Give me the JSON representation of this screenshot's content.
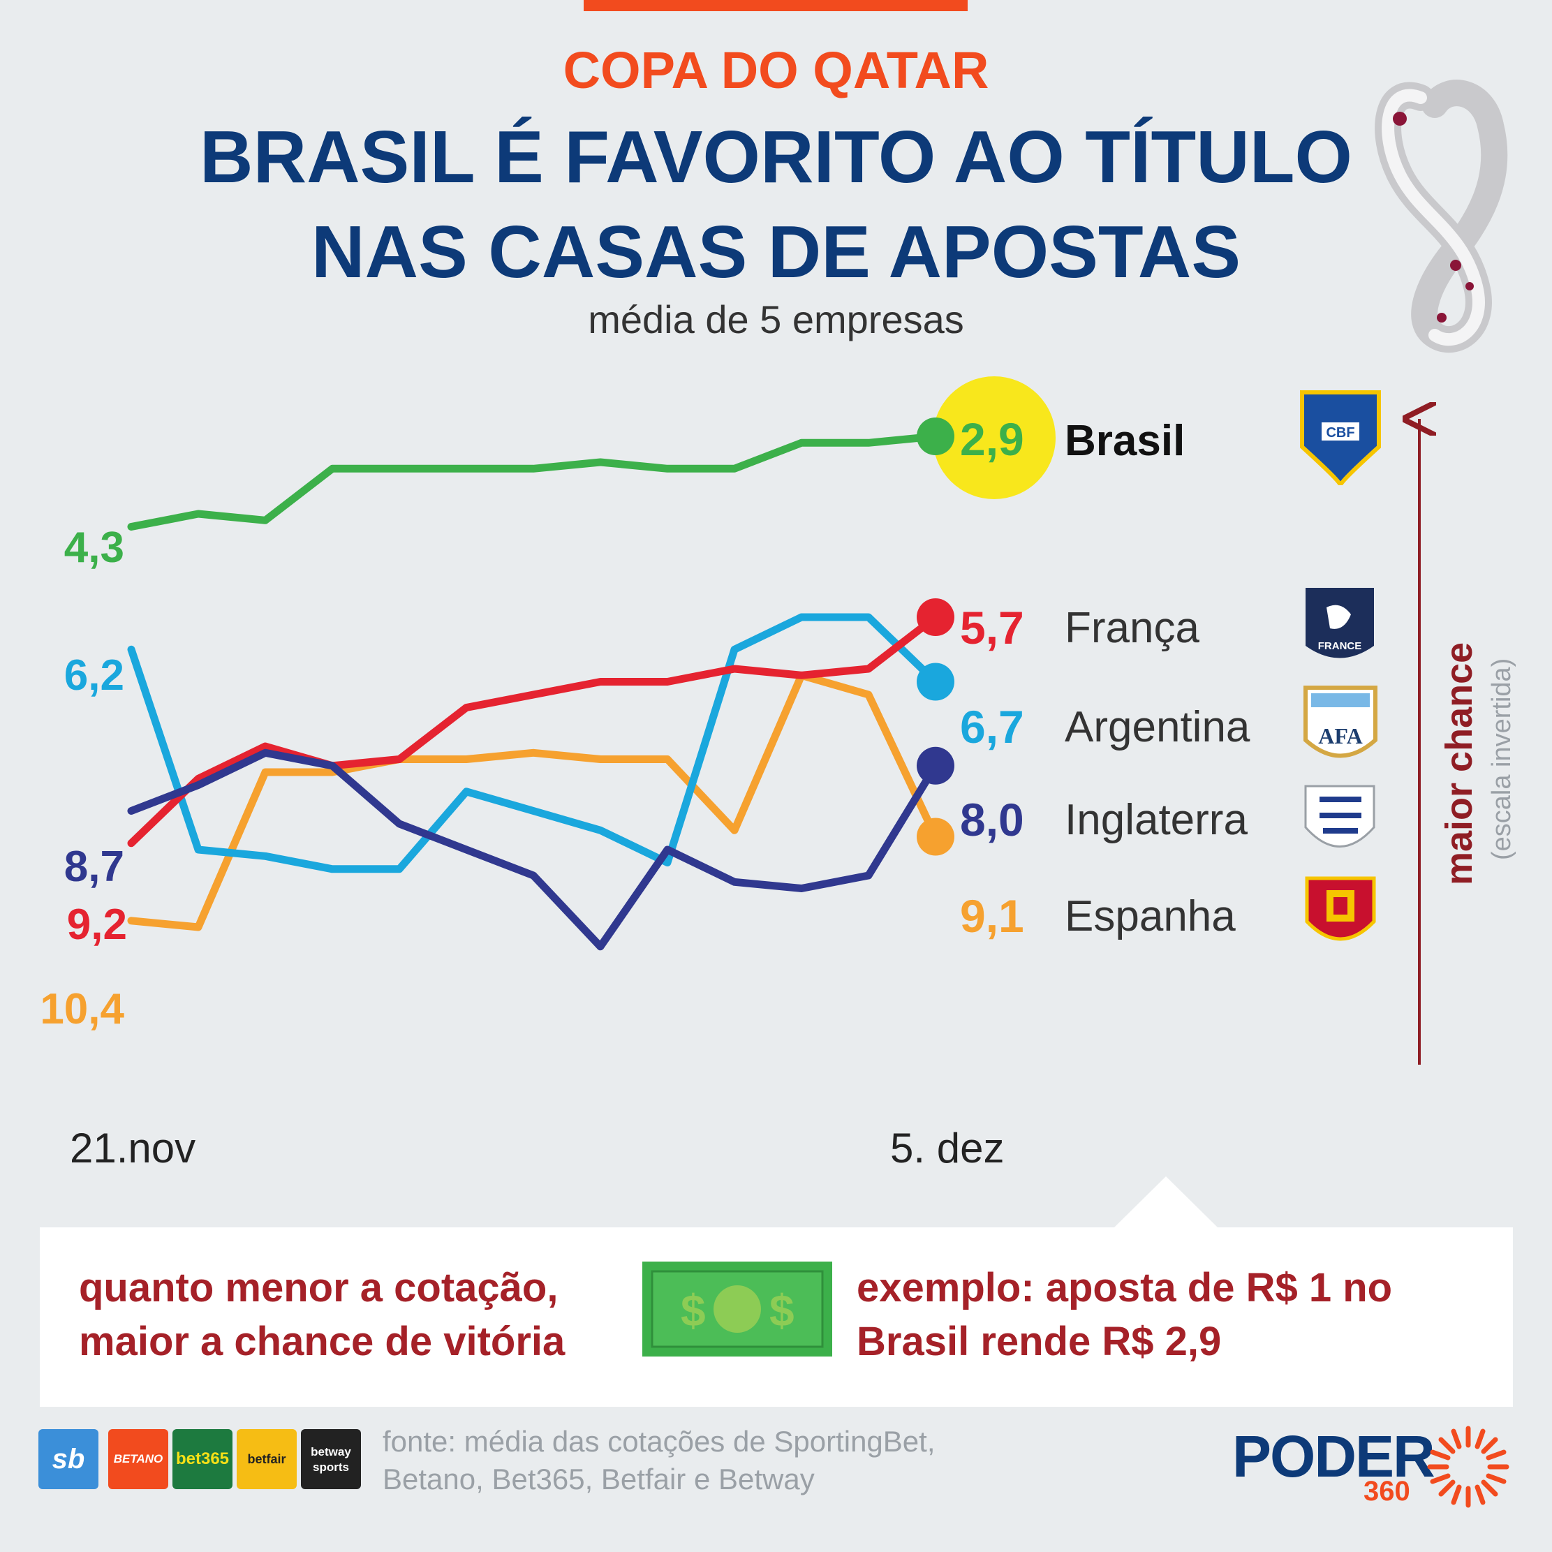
{
  "kicker": "COPA DO QATAR",
  "title_line1": "BRASIL É FAVORITO AO TÍTULO",
  "title_line2": "NAS CASAS DE APOSTAS",
  "subtitle": "média de 5 empresas",
  "axis_note": {
    "label": "maior chance",
    "sublabel": "(escala invertida)"
  },
  "note": {
    "left_line1": "quanto menor a cotação,",
    "left_line2": "maior a chance de vitória",
    "right_line1": "exemplo: aposta de R$ 1 no",
    "right_line2": "Brasil rende R$ 2,9"
  },
  "source_line1": "fonte: média das cotações de SportingBet,",
  "source_line2": "Betano, Bet365, Betfair e Betway",
  "brands": [
    "sb",
    "BETANO",
    "bet365",
    "betfair",
    "betway sports"
  ],
  "publisher": {
    "name": "PODER",
    "suffix": "360"
  },
  "colors": {
    "Brasil": "#3cb04a",
    "França": "#e52330",
    "Argentina": "#1aa7dd",
    "Inglaterra": "#30388f",
    "Espanha": "#f6a12f",
    "highlight": "#f8e71c",
    "accent": "#f24b1e",
    "title": "#0d3a78",
    "note": "#a52128"
  },
  "chart_data": {
    "type": "line",
    "x_first_label": "21.nov",
    "x_last_label": "5. dez",
    "y_inverted": true,
    "grid": false,
    "series": [
      {
        "name": "Brasil",
        "start_label": "4,3",
        "end_label": "2,9",
        "values": [
          4.3,
          4.1,
          4.2,
          3.4,
          3.4,
          3.4,
          3.4,
          3.3,
          3.4,
          3.4,
          3.0,
          3.0,
          2.9
        ]
      },
      {
        "name": "França",
        "start_label": "9,2",
        "end_label": "5,7",
        "values": [
          9.2,
          8.2,
          7.7,
          8.0,
          7.9,
          7.1,
          6.9,
          6.7,
          6.7,
          6.5,
          6.6,
          6.5,
          5.7
        ]
      },
      {
        "name": "Argentina",
        "start_label": "6,2",
        "end_label": "6,7",
        "values": [
          6.2,
          9.3,
          9.4,
          9.6,
          9.6,
          8.4,
          8.7,
          9.0,
          9.5,
          6.2,
          5.7,
          5.7,
          6.7
        ]
      },
      {
        "name": "Inglaterra",
        "start_label": "8,7",
        "end_label": "8,0",
        "values": [
          8.7,
          8.3,
          7.8,
          8.0,
          8.9,
          9.3,
          9.7,
          10.8,
          9.3,
          9.8,
          9.9,
          9.7,
          8.0
        ]
      },
      {
        "name": "Espanha",
        "start_label": "10,4",
        "end_label": "9,1",
        "values": [
          10.4,
          10.5,
          8.1,
          8.1,
          7.9,
          7.9,
          7.8,
          7.9,
          7.9,
          9.0,
          6.6,
          6.9,
          9.1
        ]
      }
    ]
  }
}
